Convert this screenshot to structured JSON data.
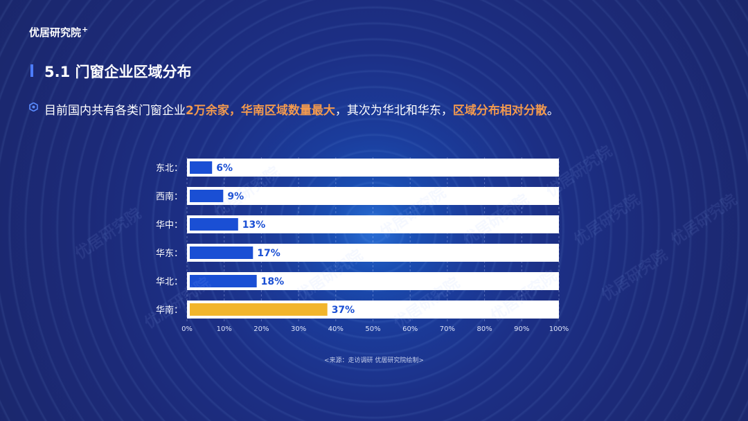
{
  "header": {
    "logo_text": "优居研究院",
    "logo_plus": "+"
  },
  "slide": {
    "title": "5.1 门窗企业区域分布",
    "summary": {
      "part1": "目前国内共有各类门窗企业",
      "hl1": "2万余家，华南区域数量最大",
      "part2": "，其次为华北和华东，",
      "hl2": "区域分布相对分散",
      "part3": "。"
    },
    "source": "<来源：走访调研 优居研究院绘制>"
  },
  "watermark_text": "优居研究院",
  "chart_data": {
    "type": "bar",
    "orientation": "horizontal",
    "categories": [
      "东北：",
      "西南：",
      "华中：",
      "华东：",
      "华北：",
      "华南："
    ],
    "values": [
      6,
      9,
      13,
      17,
      18,
      37
    ],
    "value_labels": [
      "6%",
      "9%",
      "13%",
      "17%",
      "18%",
      "37%"
    ],
    "xlim": [
      0,
      100
    ],
    "xticks": [
      "0%",
      "10%",
      "20%",
      "30%",
      "40%",
      "50%",
      "60%",
      "70%",
      "80%",
      "90%",
      "100%"
    ],
    "grid": true,
    "colors": {
      "default": "#1a4fd4",
      "highlight": "#f2b52c",
      "label": "#1a4fd4",
      "track": "#ffffff"
    },
    "highlight_index": 5
  }
}
